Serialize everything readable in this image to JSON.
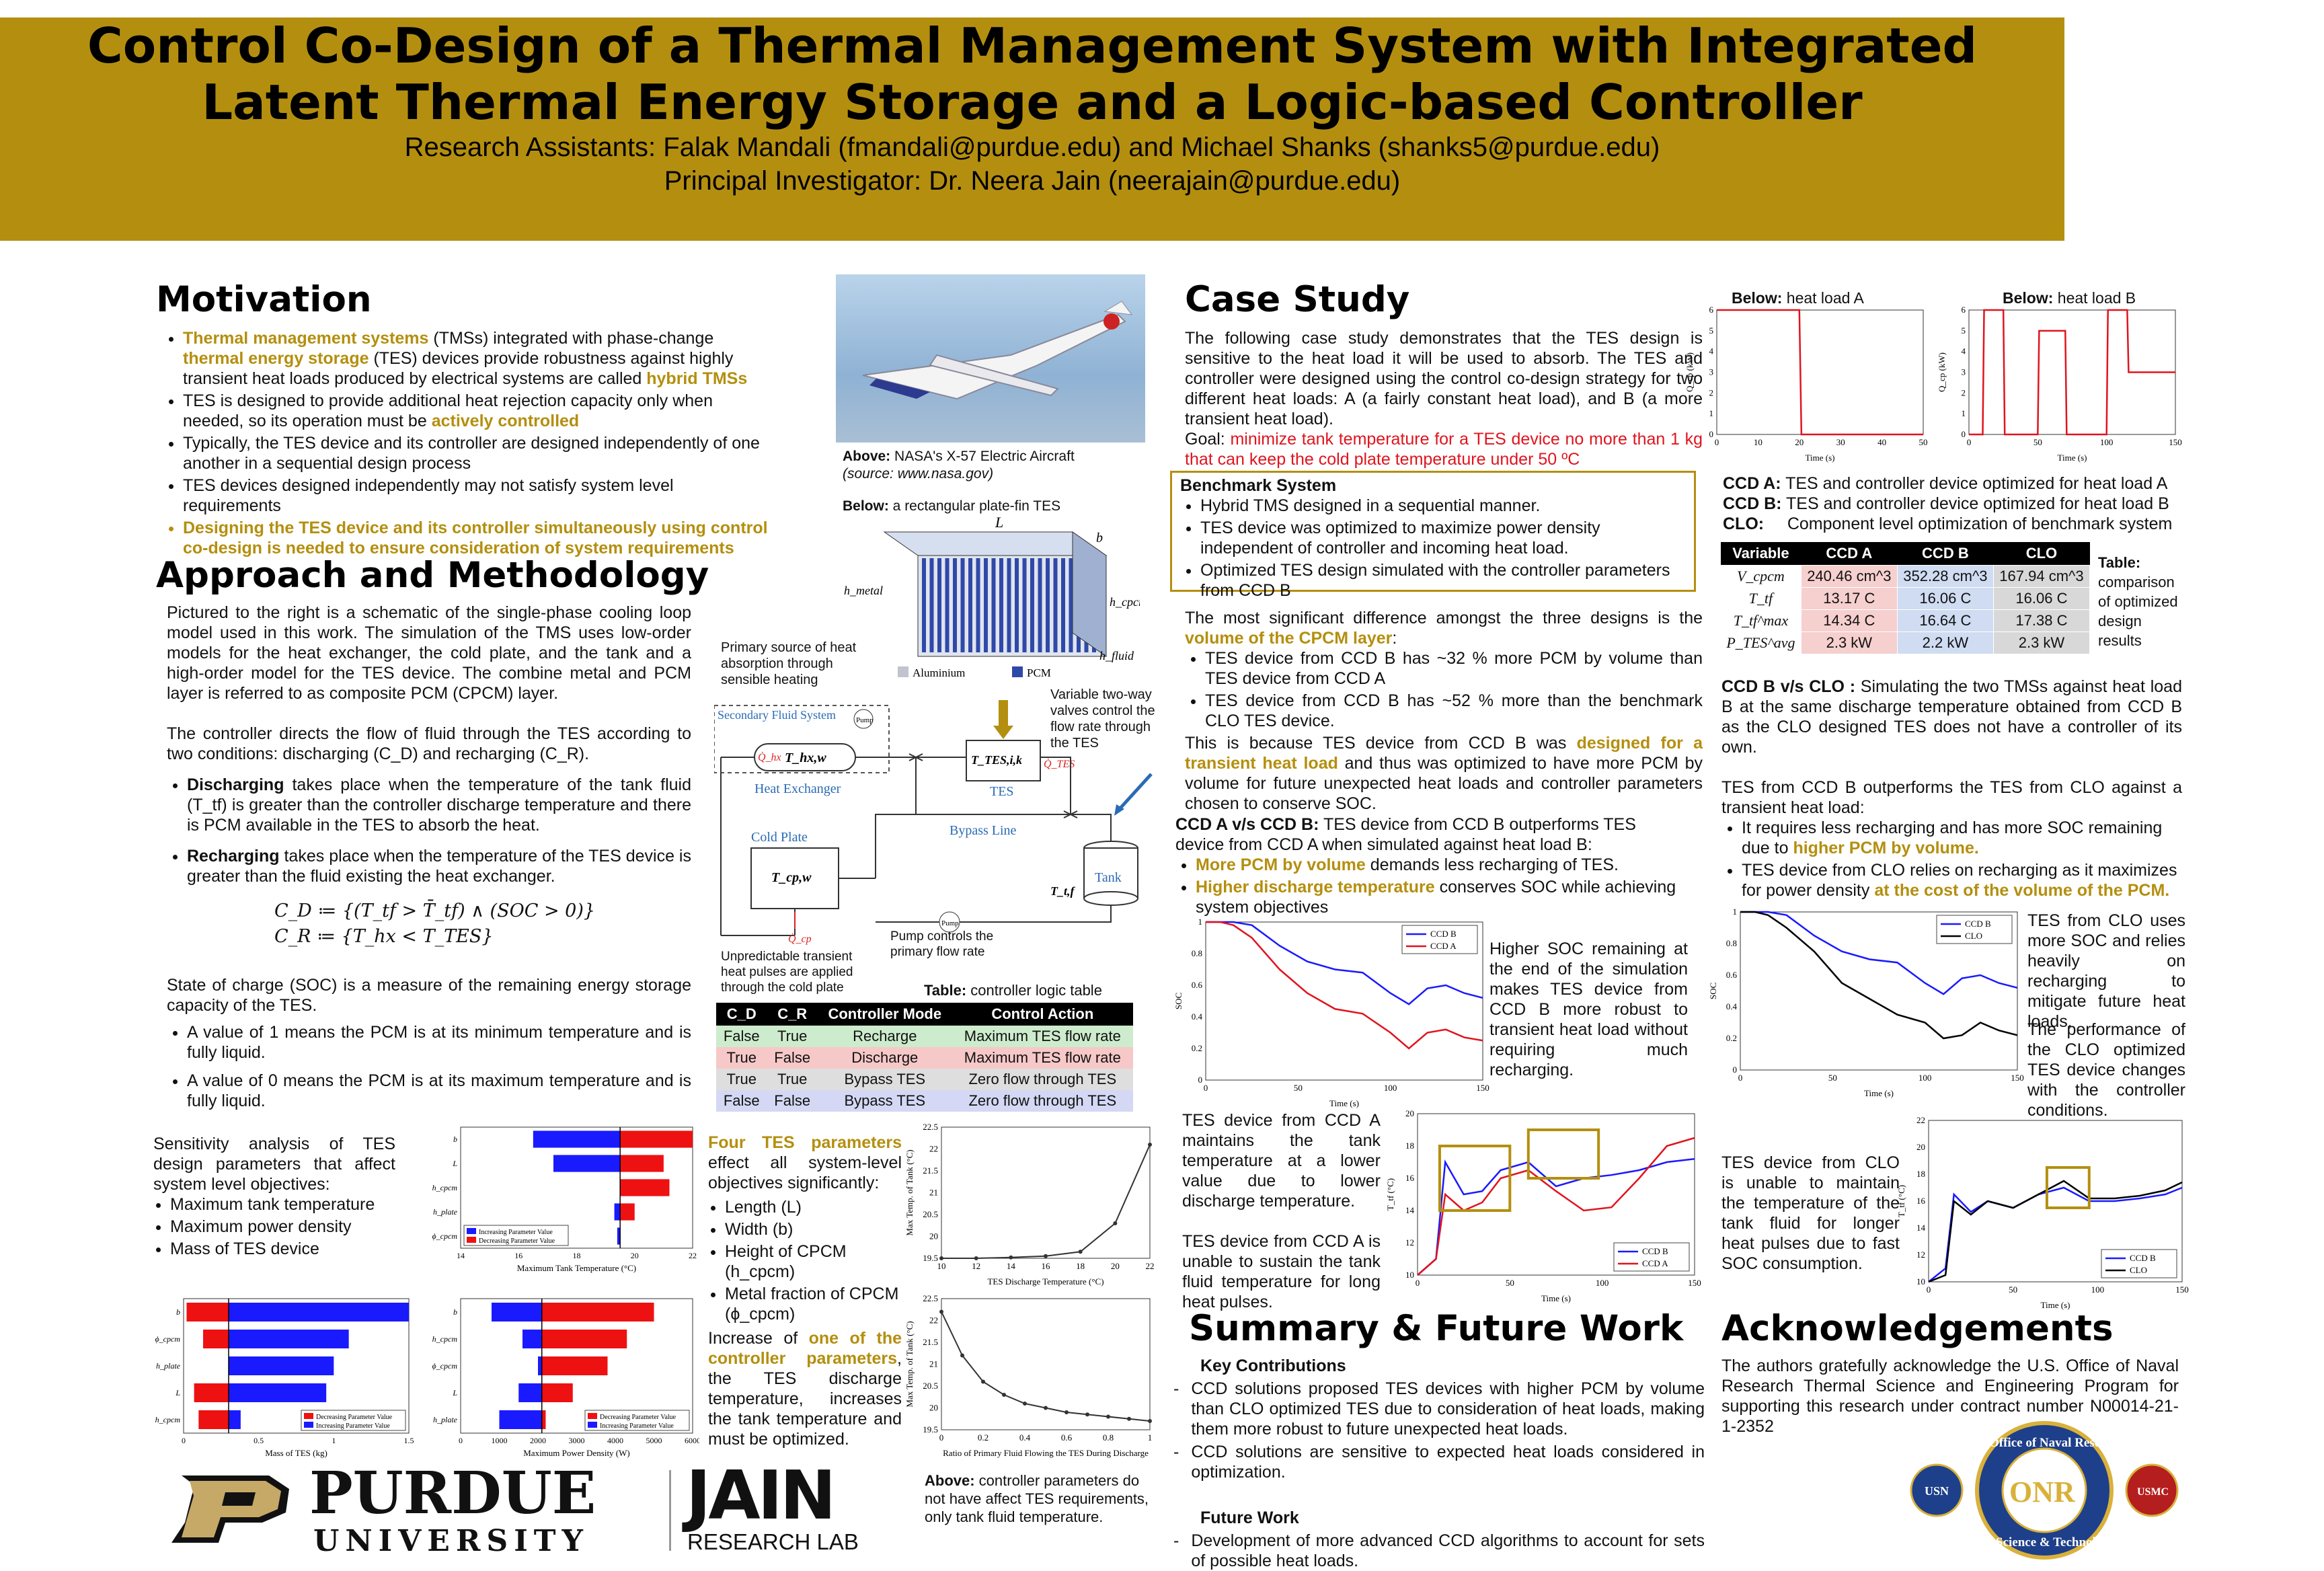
{
  "header": {
    "title_line1": "Control Co-Design of a Thermal Management System with Integrated",
    "title_line2": "Latent Thermal Energy Storage and a Logic-based Controller",
    "assistants": "Research Assistants: Falak Mandali (fmandali@purdue.edu) and Michael Shanks (shanks5@purdue.edu)",
    "pi": "Principal Investigator: Dr. Neera Jain (neerajain@purdue.edu)"
  },
  "motivation": {
    "heading": "Motivation",
    "b1_a": "Thermal management systems",
    "b1_b": " (TMSs) integrated with phase-change ",
    "b1_c": "thermal energy storage",
    "b1_d": " (TES) devices provide robustness against highly transient heat loads produced by electrical systems are called ",
    "b1_e": "hybrid TMSs",
    "b2_a": "TES is designed to provide additional heat rejection capacity only when needed, so its operation must be ",
    "b2_b": "actively controlled",
    "b3": "Typically, the TES device and its controller are designed independently of one another in a sequential design process",
    "b4": "TES devices designed independently may not satisfy system level requirements",
    "b5": "Designing the TES device and its controller simultaneously using control co-design is needed to ensure consideration of system requirements"
  },
  "aircraft": {
    "caption_bold": "Above:",
    "caption": " NASA's  X-57 Electric Aircraft",
    "source": "(source: www.nasa.gov)",
    "tes_caption_bold": "Below:",
    "tes_caption": "  a rectangular plate-fin TES",
    "legend_al": "Aluminium",
    "legend_pcm": "PCM",
    "dim_L": "L",
    "dim_b": "b",
    "dim_hmetal": "h_metal",
    "dim_hcpcm": "h_cpcm",
    "dim_hfluid": "h_fluid"
  },
  "approach": {
    "heading": "Approach and Methodology",
    "p1": "Pictured to the right is a schematic of the single-phase cooling loop model used in this work. The simulation of the TMS uses low-order models for the heat exchanger, the cold plate, and the tank and a high-order model for the TES device. The combine metal and PCM layer is referred to as composite PCM (CPCM) layer.",
    "p2": "The controller directs the flow of fluid through the TES according to two conditions: discharging (C_D) and recharging (C_R).",
    "dis_label": "Discharging",
    "dis_text": " takes place when the temperature of the tank fluid (T_tf) is greater than the controller discharge temperature and there is PCM available in the TES to absorb the heat.",
    "rec_label": "Recharging",
    "rec_text": " takes place when the temperature of the TES device is greater than the fluid existing the heat exchanger.",
    "eq1": "C_D ≔ {(T_tf > T̄_tf) ∧ (SOC > 0)}",
    "eq2": "C_R ≔ {T_hx < T_TES}",
    "p3": "State of charge (SOC) is a measure of the remaining energy storage capacity of the TES.",
    "s1": "A value of 1 means the PCM is at its minimum temperature and is fully liquid.",
    "s2": "A value of 0 means the PCM is at its maximum temperature and is fully liquid."
  },
  "schematic": {
    "primary_source": "Primary source of heat absorption through sensible heating",
    "valve_note": "Variable two-way valves control the flow rate through the TES",
    "secondary": "Secondary Fluid System",
    "pump": "Pump",
    "hx": "Heat Exchanger",
    "hx_temp": "T_hx,w",
    "qhx": "Q̇_hx",
    "tes": "TES",
    "tes_temp": "T_TES,i,k",
    "qtes": "Q̇_TES",
    "bypass": "Bypass Line",
    "coldplate": "Cold Plate",
    "cp_temp": "T_cp,w",
    "tank": "Tank",
    "tank_temp": "T_t,f",
    "qcp": "Q̇_cp",
    "unpredictable": "Unpredictable transient heat pulses are applied through the cold plate",
    "pump_note": "Pump controls the primary flow rate"
  },
  "logic_table": {
    "caption_bold": "Table:",
    "caption": " controller logic table",
    "headers": [
      "C_D",
      "C_R",
      "Controller Mode",
      "Control Action"
    ],
    "rows": [
      [
        "False",
        "True",
        "Recharge",
        "Maximum TES flow rate"
      ],
      [
        "True",
        "False",
        "Discharge",
        "Maximum TES flow rate"
      ],
      [
        "True",
        "True",
        "Bypass TES",
        "Zero flow through TES"
      ],
      [
        "False",
        "False",
        "Bypass TES",
        "Zero flow through TES"
      ]
    ],
    "row_colors": [
      "#cdeccd",
      "#f7c8c8",
      "#dedede",
      "#d4d8f4"
    ]
  },
  "sensitivity": {
    "intro": "Sensitivity analysis of TES design parameters that affect system level objectives:",
    "items": [
      "Maximum tank temperature",
      "Maximum power density",
      "Mass of TES device"
    ],
    "chart1_xlabel": "Maximum Tank Temperature (°C)",
    "chart1_ticks": [
      "14",
      "16",
      "18",
      "20",
      "22"
    ],
    "chart1_rows": [
      "b",
      "L",
      "h_cpcm",
      "h_plate",
      "ϕ_cpcm"
    ],
    "legend_inc": "Increasing Parameter Value",
    "legend_dec": "Decreasing Parameter Value",
    "chart2_xlabel": "Mass of TES (kg)",
    "chart2_ticks": [
      "0",
      "0.5",
      "1",
      "1.5"
    ],
    "chart2_rows": [
      "b",
      "ϕ_cpcm",
      "h_plate",
      "L",
      "h_cpcm"
    ],
    "chart3_xlabel": "Maximum Power Density (W)",
    "chart3_ticks": [
      "0",
      "1000",
      "2000",
      "3000",
      "4000",
      "5000",
      "6000"
    ],
    "chart3_rows": [
      "b",
      "h_cpcm",
      "ϕ_cpcm",
      "L",
      "h_plate"
    ],
    "color_inc": "#1a1aff",
    "color_dec": "#ee1111"
  },
  "four_params": {
    "intro_a": "Four TES parameters",
    "intro_b": " effect all system-level objectives significantly:",
    "items": [
      "Length (L)",
      "Width (b)",
      "Height of CPCM (h_cpcm)",
      "Metal fraction of CPCM (ϕ_cpcm)"
    ],
    "p_a": "Increase of ",
    "p_b": "one of the controller parameters",
    "p_c": ", the TES discharge temperature, increases the tank temperature and must be optimized.",
    "note_bold": "Above:",
    "note": " controller parameters do not have affect TES requirements, only tank fluid temperature."
  },
  "chart_data": [
    {
      "type": "line",
      "title": "",
      "xlabel": "TES Discharge Temperature (°C)",
      "ylabel": "Max Temp. of Tank (°C)",
      "x": [
        10,
        12,
        14,
        16,
        18,
        20,
        22
      ],
      "values": [
        19.5,
        19.5,
        19.52,
        19.55,
        19.65,
        20.3,
        22.1
      ],
      "ylim": [
        19.5,
        22.5
      ],
      "xlim": [
        10,
        22
      ],
      "xticks": [
        "10",
        "12",
        "14",
        "16",
        "18",
        "20",
        "22"
      ],
      "yticks": [
        "19.5",
        "20",
        "20.5",
        "21",
        "21.5",
        "22",
        "22.5"
      ]
    },
    {
      "type": "line",
      "title": "",
      "xlabel": "Ratio of Primary Fluid Flowing the TES During Discharge",
      "ylabel": "Max Temp. of Tank (°C)",
      "x": [
        0,
        0.1,
        0.2,
        0.3,
        0.4,
        0.5,
        0.6,
        0.7,
        0.8,
        0.9,
        1.0
      ],
      "values": [
        22.2,
        21.2,
        20.6,
        20.3,
        20.1,
        20.0,
        19.9,
        19.85,
        19.8,
        19.75,
        19.7
      ],
      "ylim": [
        19.5,
        22.5
      ],
      "xlim": [
        0,
        1
      ],
      "xticks": [
        "0",
        "0.2",
        "0.4",
        "0.6",
        "0.8",
        "1"
      ],
      "yticks": [
        "19.5",
        "20",
        "20.5",
        "21",
        "21.5",
        "22",
        "22.5"
      ]
    },
    {
      "type": "line",
      "title": "Below: heat load A",
      "xlabel": "Time (s)",
      "ylabel": "Q_cp (kW)",
      "x": [
        0,
        20,
        20.5,
        50
      ],
      "values": [
        6,
        6,
        0,
        0
      ],
      "xlim": [
        0,
        50
      ],
      "ylim": [
        0,
        6
      ],
      "xticks": [
        "0",
        "10",
        "20",
        "30",
        "40",
        "50"
      ],
      "yticks": [
        "0",
        "1",
        "2",
        "3",
        "4",
        "5",
        "6"
      ]
    },
    {
      "type": "line",
      "title": "Below: heat load B",
      "xlabel": "Time (s)",
      "ylabel": "Q_cp (kW)",
      "x": [
        0,
        10,
        11,
        25,
        26,
        50,
        51,
        70,
        71,
        100,
        101,
        115,
        116,
        140,
        141,
        150
      ],
      "values": [
        0,
        0,
        6,
        6,
        0,
        0,
        5,
        5,
        0,
        0,
        6,
        6,
        3,
        3,
        3,
        3
      ],
      "xlim": [
        0,
        150
      ],
      "ylim": [
        0,
        6
      ],
      "xticks": [
        "0",
        "50",
        "100",
        "150"
      ],
      "yticks": [
        "0",
        "1",
        "2",
        "3",
        "4",
        "5",
        "6"
      ]
    },
    {
      "type": "line",
      "title": "",
      "xlabel": "Time (s)",
      "ylabel": "SOC",
      "x": [
        0,
        8,
        15,
        25,
        40,
        55,
        70,
        85,
        100,
        110,
        120,
        130,
        140,
        150
      ],
      "series": [
        {
          "name": "CCD B",
          "values": [
            1,
            1,
            1,
            0.98,
            0.85,
            0.75,
            0.7,
            0.68,
            0.55,
            0.48,
            0.58,
            0.6,
            0.55,
            0.52
          ]
        },
        {
          "name": "CCD A",
          "values": [
            1,
            1,
            0.98,
            0.9,
            0.7,
            0.55,
            0.45,
            0.42,
            0.3,
            0.2,
            0.3,
            0.32,
            0.27,
            0.25
          ]
        }
      ],
      "xlim": [
        0,
        150
      ],
      "ylim": [
        0,
        1
      ],
      "xticks": [
        "0",
        "50",
        "100",
        "150"
      ],
      "yticks": [
        "0",
        "0.2",
        "0.4",
        "0.6",
        "0.8",
        "1"
      ]
    },
    {
      "type": "line",
      "title": "",
      "xlabel": "Time (s)",
      "ylabel": "T_tf (°C)",
      "x": [
        0,
        10,
        15,
        20,
        25,
        35,
        45,
        60,
        75,
        90,
        105,
        120,
        135,
        150
      ],
      "series": [
        {
          "name": "CCD B",
          "values": [
            10,
            11,
            17,
            16,
            15,
            15.2,
            16.5,
            17,
            15.5,
            16,
            16.2,
            16.5,
            17,
            17.2
          ]
        },
        {
          "name": "CCD A",
          "values": [
            10,
            11,
            15,
            14.5,
            14,
            14.5,
            16,
            16.5,
            15.2,
            14,
            14.2,
            16,
            18,
            18.5
          ]
        }
      ],
      "xlim": [
        0,
        150
      ],
      "ylim": [
        10,
        20
      ],
      "xticks": [
        "0",
        "50",
        "100",
        "150"
      ],
      "yticks": [
        "10",
        "12",
        "14",
        "16",
        "18",
        "20"
      ]
    },
    {
      "type": "line",
      "title": "",
      "xlabel": "Time (s)",
      "ylabel": "SOC",
      "x": [
        0,
        8,
        15,
        25,
        40,
        55,
        70,
        85,
        100,
        110,
        120,
        130,
        140,
        150
      ],
      "series": [
        {
          "name": "CCD B",
          "values": [
            1,
            1,
            1,
            0.98,
            0.85,
            0.75,
            0.7,
            0.68,
            0.55,
            0.48,
            0.58,
            0.6,
            0.55,
            0.52
          ]
        },
        {
          "name": "CLO",
          "values": [
            1,
            1,
            0.98,
            0.9,
            0.75,
            0.55,
            0.45,
            0.35,
            0.3,
            0.2,
            0.22,
            0.3,
            0.25,
            0.22
          ]
        }
      ],
      "xlim": [
        0,
        150
      ],
      "ylim": [
        0,
        1
      ],
      "xticks": [
        "0",
        "50",
        "100",
        "150"
      ],
      "yticks": [
        "0",
        "0.2",
        "0.4",
        "0.6",
        "0.8",
        "1"
      ]
    },
    {
      "type": "line",
      "title": "",
      "xlabel": "Time (s)",
      "ylabel": "T_tf (°C)",
      "x": [
        0,
        10,
        15,
        25,
        35,
        50,
        65,
        80,
        95,
        110,
        125,
        140,
        150
      ],
      "series": [
        {
          "name": "CCD B",
          "values": [
            10,
            11,
            16.5,
            15.2,
            16,
            15.5,
            16.5,
            17,
            16,
            16,
            16.2,
            16.5,
            17
          ]
        },
        {
          "name": "CLO",
          "values": [
            10,
            10.5,
            16,
            15,
            16,
            15.5,
            16.5,
            17.5,
            16.2,
            16.2,
            16.4,
            16.8,
            17.4
          ]
        }
      ],
      "xlim": [
        0,
        150
      ],
      "ylim": [
        10,
        22
      ],
      "xticks": [
        "0",
        "50",
        "100",
        "150"
      ],
      "yticks": [
        "10",
        "12",
        "14",
        "16",
        "18",
        "20",
        "22"
      ]
    }
  ],
  "case": {
    "heading": "Case Study",
    "p1": "The following case study demonstrates that the TES design is sensitive to the heat load it will be used to absorb. The TES and controller were designed using the control co-design strategy for two different heat loads: A (a fairly constant heat load), and B (a more transient heat load).",
    "goal_a": "Goal: ",
    "goal_b": "minimize tank temperature for a TES device no more than 1 kg that can keep the cold plate temperature under 50 ºC",
    "loadA_bold": "Below:",
    "loadA": " heat load A",
    "loadB_bold": "Below:",
    "loadB": " heat load B",
    "bench_title": "Benchmark System",
    "bench_items": [
      "Hybrid TMS designed in a sequential manner.",
      "TES device was optimized to maximize power density independent of controller and incoming heat load.",
      "Optimized TES design simulated with the controller parameters from CCD B"
    ],
    "diff_a": "The most significant difference amongst the three designs is the ",
    "diff_b": "volume of the CPCM layer",
    "diff_c": ":",
    "diff_items": [
      "TES device from CCD B has ~32 % more PCM by volume than TES device from CCD A",
      "TES device from CCD B has ~52 % more than the benchmark CLO TES device."
    ],
    "because_a": "This is because TES device from CCD B was ",
    "because_b": "designed for a transient heat load",
    "because_c": " and thus was optimized to have more PCM by volume for future unexpected heat loads and controller parameters chosen to conserve SOC.",
    "ab_title": "CCD A v/s CCD B:",
    "ab_text": " TES device from CCD B outperforms TES device from CCD A when simulated against heat load B:",
    "ab1_a": "More PCM by volume",
    "ab1_b": " demands less recharging of TES.",
    "ab2_a": "Higher discharge temperature",
    "ab2_b": " conserves SOC while achieving system objectives",
    "soc_note": "Higher SOC remaining at the end of the simulation makes TES device from CCD B more robust to transient heat load without requiring much recharging.",
    "ttf_note1": "TES device from CCD A maintains the tank temperature at a lower value due to lower discharge temperature.",
    "ttf_note2": "TES device from CCD A is unable to sustain the tank fluid temperature for long heat pulses."
  },
  "defs": {
    "a_label": "CCD A:",
    "a_text": "TES and controller device optimized for heat load A",
    "b_label": "CCD B:",
    "b_text": "TES and controller device optimized for heat load B",
    "clo_label": "CLO:",
    "clo_text": "Component level optimization of benchmark system"
  },
  "results_table": {
    "headers": [
      "Variable",
      "CCD A",
      "CCD B",
      "CLO"
    ],
    "rows": [
      [
        "V_cpcm",
        "240.46 cm^3",
        "352.28 cm^3",
        "167.94 cm^3"
      ],
      [
        "T_tf",
        "13.17 C",
        "16.06 C",
        "16.06 C"
      ],
      [
        "T_tf^max",
        "14.34 C",
        "16.64 C",
        "17.38 C"
      ],
      [
        "P_TES^avg",
        "2.3 kW",
        "2.2 kW",
        "2.3 kW"
      ]
    ],
    "col_colors": [
      "#f6cfcf",
      "#cfdcf2",
      "#d8d8d8"
    ],
    "caption_bold": "Table:",
    "caption": "comparison of optimized design results"
  },
  "clo": {
    "title": "CCD B v/s CLO :",
    "p1": " Simulating the two TMSs against heat load B at the same discharge temperature obtained from CCD B as the CLO designed TES does not have a controller of its own.",
    "p2": "TES from CCD B outperforms the TES from CLO against a transient heat load:",
    "i1_a": "It requires less recharging and has more SOC remaining due to ",
    "i1_b": "higher PCM by volume.",
    "i2_a": "TES device from CLO relies on recharging as it maximizes for power density ",
    "i2_b": "at the cost of the volume of the PCM.",
    "soc_note": "TES from CLO uses more SOC and relies heavily on recharging to mitigate future heat loads.",
    "perf_note": "The performance of the CLO optimized TES device changes with the controller conditions.",
    "ttf_note": "TES device from CLO is unable to maintain the temperature of the tank fluid for longer heat pulses due to fast SOC consumption."
  },
  "summary": {
    "heading": "Summary & Future Work",
    "kc": "Key Contributions",
    "kc_items": [
      "CCD solutions proposed TES devices with higher PCM by volume than CLO optimized TES due to consideration of heat loads, making them more robust to future unexpected heat loads.",
      "CCD solutions are sensitive to expected heat loads considered in optimization."
    ],
    "fw": "Future Work",
    "fw_items": [
      "Development of more advanced CCD algorithms to account for sets of possible heat loads."
    ]
  },
  "ack": {
    "heading": "Acknowledgements",
    "text": "The authors gratefully acknowledge the U.S. Office of Naval Research Thermal Science and Engineering Program for supporting this research under contract number N00014-21-1-2352",
    "onr_top": "Office of Naval Research",
    "onr_mid": "ONR",
    "onr_bottom": "Science & Technology",
    "usn": "USN",
    "usmc": "USMC"
  },
  "logos": {
    "purdue_word": "PURDUE",
    "purdue_sub": "UNIVERSITY",
    "jain": "JAIN",
    "jain_sub": "RESEARCH LAB"
  }
}
